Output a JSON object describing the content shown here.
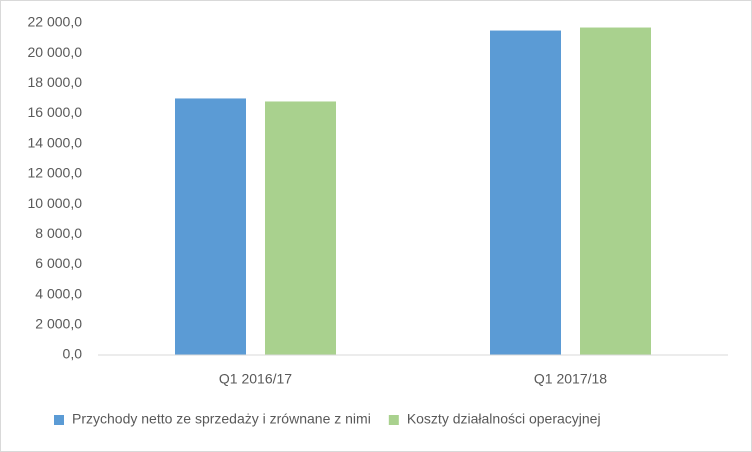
{
  "chart_data": {
    "type": "bar",
    "categories": [
      "Q1 2016/17",
      "Q1 2017/18"
    ],
    "series": [
      {
        "name": "Przychody netto ze sprzedaży i zrównane z nimi",
        "color": "#5b9bd5",
        "values": [
          17000,
          21500
        ]
      },
      {
        "name": "Koszty działalności operacyjnej",
        "color": "#a9d18e",
        "values": [
          16800,
          21700
        ]
      }
    ],
    "ylim": [
      0,
      22000
    ],
    "yticks": [
      {
        "value": 0,
        "label": "0,0"
      },
      {
        "value": 2000,
        "label": "2 000,0"
      },
      {
        "value": 4000,
        "label": "4 000,0"
      },
      {
        "value": 6000,
        "label": "6 000,0"
      },
      {
        "value": 8000,
        "label": "8 000,0"
      },
      {
        "value": 10000,
        "label": "10 000,0"
      },
      {
        "value": 12000,
        "label": "12 000,0"
      },
      {
        "value": 14000,
        "label": "14 000,0"
      },
      {
        "value": 16000,
        "label": "16 000,0"
      },
      {
        "value": 18000,
        "label": "18 000,0"
      },
      {
        "value": 20000,
        "label": "20 000,0"
      },
      {
        "value": 22000,
        "label": "22 000,0"
      }
    ],
    "grid": false,
    "legend": "bottom"
  }
}
